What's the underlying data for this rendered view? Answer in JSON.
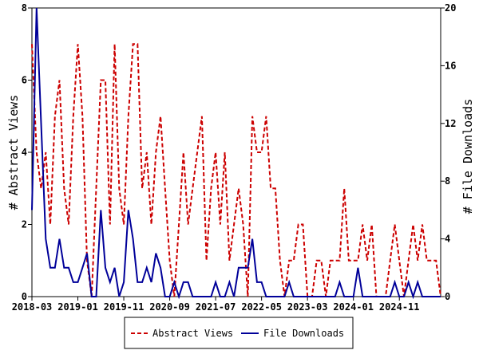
{
  "chart_data": {
    "type": "line",
    "y_left_label": "# Abstract Views",
    "y_right_label": "# File Downloads",
    "x_tick_labels": [
      "2018-03",
      "2019-01",
      "2019-11",
      "2020-09",
      "2021-07",
      "2022-05",
      "2023-03",
      "2024-01",
      "2024-11"
    ],
    "y_left_ticks": [
      0,
      2,
      4,
      6,
      8
    ],
    "y_right_ticks": [
      0,
      4,
      8,
      12,
      16,
      20
    ],
    "y_left_range": [
      0,
      8
    ],
    "y_right_range": [
      0,
      20
    ],
    "x_range": [
      0,
      89
    ],
    "x_index_of_ticks": [
      0,
      10,
      20,
      30,
      40,
      50,
      60,
      70,
      80
    ],
    "legend_position": "bottom-center",
    "grid": false,
    "series": [
      {
        "name": "Abstract Views",
        "axis": "left",
        "color": "#cc0000",
        "dash": true,
        "values": [
          7,
          4,
          3,
          4,
          2,
          5,
          6,
          3,
          2,
          5,
          7,
          5,
          1,
          0,
          3,
          6,
          6,
          2,
          7,
          3,
          2,
          5,
          7,
          7,
          3,
          4,
          2,
          4,
          5,
          3,
          1,
          0,
          2,
          4,
          2,
          3,
          4,
          5,
          1,
          3,
          4,
          2,
          4,
          1,
          2,
          3,
          2,
          0,
          5,
          4,
          4,
          5,
          3,
          3,
          1,
          0,
          1,
          1,
          2,
          2,
          0,
          0,
          1,
          1,
          0,
          1,
          1,
          1,
          3,
          1,
          1,
          1,
          2,
          1,
          2,
          0,
          0,
          0,
          1,
          2,
          1,
          0,
          1,
          2,
          1,
          2,
          1,
          1,
          1,
          0
        ]
      },
      {
        "name": "File Downloads",
        "axis": "right",
        "color": "#000099",
        "dash": false,
        "values": [
          6,
          20,
          12,
          4,
          2,
          2,
          4,
          2,
          2,
          1,
          1,
          2,
          3,
          0,
          0,
          6,
          2,
          1,
          2,
          0,
          1,
          6,
          4,
          1,
          1,
          2,
          1,
          3,
          2,
          0,
          0,
          1,
          0,
          1,
          1,
          0,
          0,
          0,
          0,
          0,
          1,
          0,
          0,
          1,
          0,
          2,
          2,
          2,
          4,
          1,
          1,
          0,
          0,
          0,
          0,
          0,
          1,
          0,
          0,
          0,
          0,
          0,
          0,
          0,
          0,
          0,
          0,
          1,
          0,
          0,
          0,
          2,
          0,
          0,
          0,
          0,
          0,
          0,
          0,
          1,
          0,
          0,
          1,
          0,
          1,
          0,
          0,
          0,
          0,
          0
        ]
      }
    ]
  }
}
